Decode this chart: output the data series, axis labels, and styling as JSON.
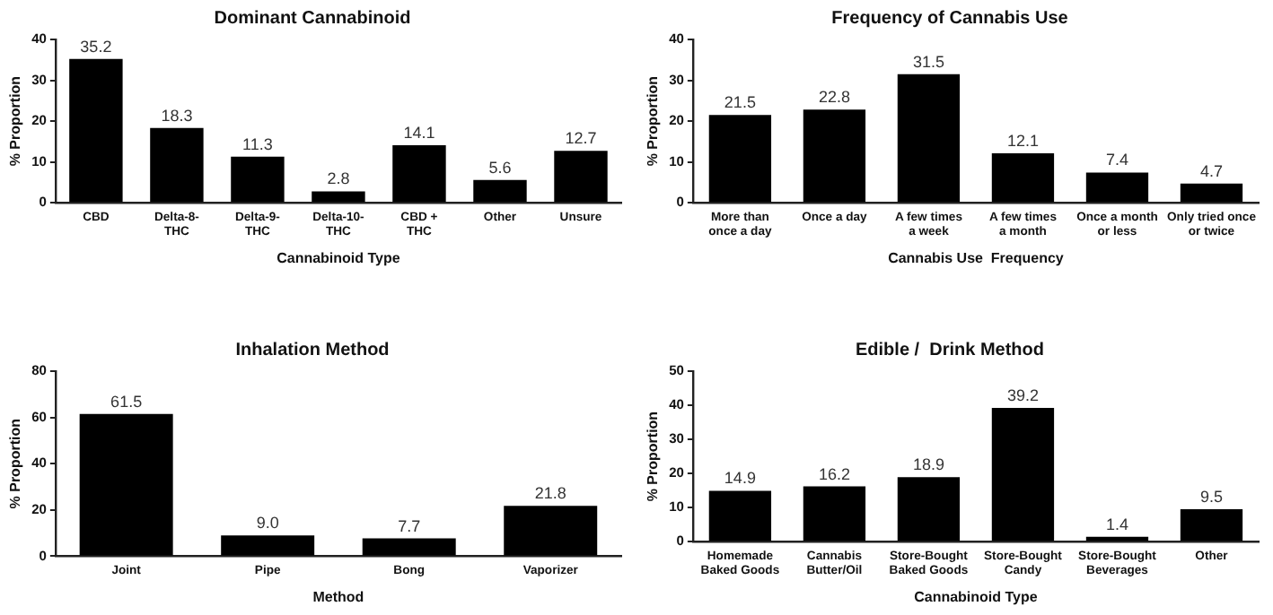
{
  "chart_data": [
    {
      "type": "bar",
      "title": "Dominant Cannabinoid",
      "xlabel": "Cannabinoid Type",
      "ylabel": "% Proportion",
      "categories": [
        "CBD",
        "Delta-8-\nTHC",
        "Delta-9-\nTHC",
        "Delta-10-\nTHC",
        "CBD +\nTHC",
        "Other",
        "Unsure"
      ],
      "values": [
        35.2,
        18.3,
        11.3,
        2.8,
        14.1,
        5.6,
        12.7
      ],
      "color": "#000000",
      "ylim": [
        0,
        40
      ],
      "yticks": [
        0,
        10,
        20,
        30,
        40
      ],
      "grid": false,
      "legend": false,
      "data_labels": true
    },
    {
      "type": "bar",
      "title": "Frequency of Cannabis Use",
      "xlabel": "Cannabis Use  Frequency",
      "ylabel": "% Proportion",
      "categories": [
        "More than\nonce a day",
        "Once a day",
        "A few times\na week",
        "A few times\na month",
        "Once a month\nor less",
        "Only tried once\nor twice"
      ],
      "values": [
        21.5,
        22.8,
        31.5,
        12.1,
        7.4,
        4.7
      ],
      "color": "#000000",
      "ylim": [
        0,
        40
      ],
      "yticks": [
        0,
        10,
        20,
        30,
        40
      ],
      "grid": false,
      "legend": false,
      "data_labels": true
    },
    {
      "type": "bar",
      "title": "Inhalation Method",
      "xlabel": "Method",
      "ylabel": "% Proportion",
      "categories": [
        "Joint",
        "Pipe",
        "Bong",
        "Vaporizer"
      ],
      "values": [
        61.5,
        9.0,
        7.7,
        21.8
      ],
      "value_labels": [
        "61.5",
        "9.0",
        "7.7",
        "21.8"
      ],
      "color": "#000000",
      "ylim": [
        0,
        80
      ],
      "yticks": [
        0,
        20,
        40,
        60,
        80
      ],
      "grid": false,
      "legend": false
    },
    {
      "type": "bar",
      "title": "Edible /  Drink Method",
      "xlabel": "Cannabinoid Type",
      "ylabel": "% Proportion",
      "categories": [
        "Homemade\nBaked Goods",
        "Cannabis\nButter/Oil",
        "Store-Bought\nBaked Goods",
        "Store-Bought\nCandy",
        "Store-Bought\nBeverages",
        "Other"
      ],
      "values": [
        14.9,
        16.2,
        18.9,
        39.2,
        1.4,
        9.5
      ],
      "color": "#000000",
      "ylim": [
        0,
        50
      ],
      "yticks": [
        0,
        10,
        20,
        30,
        40,
        50
      ],
      "grid": false,
      "legend": false,
      "data_labels": true
    }
  ]
}
